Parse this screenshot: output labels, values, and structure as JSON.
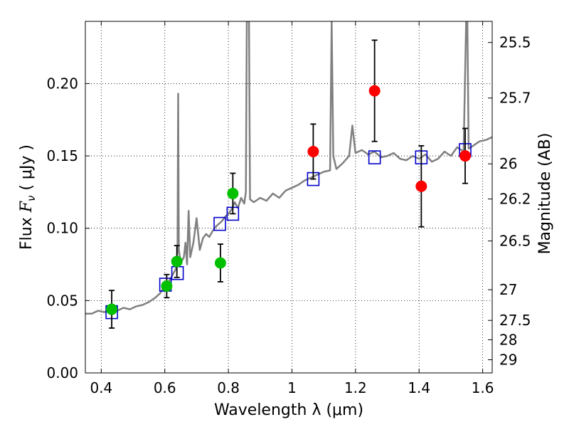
{
  "chart_data": {
    "type": "scatter",
    "xlabel": "Wavelength  λ (μm)",
    "ylabel_parts": [
      "Flux  ",
      "F",
      "ν",
      " (  μJy )"
    ],
    "y2label": "Magnitude (AB)",
    "xlim": [
      0.35,
      1.63
    ],
    "ylim": [
      0.0,
      0.243
    ],
    "x_ticks": [
      0.4,
      0.6,
      0.8,
      1.0,
      1.2,
      1.4,
      1.6
    ],
    "x_tick_labels": [
      "0.4",
      "0.6",
      "0.8",
      "1",
      "1.2",
      "1.4",
      "1.6"
    ],
    "y_ticks": [
      0.0,
      0.05,
      0.1,
      0.15,
      0.2
    ],
    "y_tick_labels": [
      "0.00",
      "0.05",
      "0.10",
      "0.15",
      "0.20"
    ],
    "y2_ticks": [
      {
        "label": "25.5",
        "flux": 0.2284
      },
      {
        "label": "25.7",
        "flux": 0.19
      },
      {
        "label": "26",
        "flux": 0.1445
      },
      {
        "label": "26.2",
        "flux": 0.1202
      },
      {
        "label": "26.5",
        "flux": 0.0912
      },
      {
        "label": "27",
        "flux": 0.0575
      },
      {
        "label": "27.5",
        "flux": 0.0363
      },
      {
        "label": "28",
        "flux": 0.0229
      },
      {
        "label": "29",
        "flux": 0.0091
      }
    ],
    "grid": true,
    "colors": {
      "spectrum": "#808080",
      "green": "#00c000",
      "red": "#ff0000",
      "model_box": "#0000cc",
      "errorbar": "#000000"
    },
    "spectrum": [
      [
        0.35,
        0.041
      ],
      [
        0.37,
        0.041
      ],
      [
        0.39,
        0.043
      ],
      [
        0.41,
        0.042
      ],
      [
        0.43,
        0.044
      ],
      [
        0.45,
        0.043
      ],
      [
        0.47,
        0.045
      ],
      [
        0.49,
        0.044
      ],
      [
        0.51,
        0.046
      ],
      [
        0.53,
        0.047
      ],
      [
        0.55,
        0.049
      ],
      [
        0.57,
        0.052
      ],
      [
        0.585,
        0.055
      ],
      [
        0.6,
        0.06
      ],
      [
        0.615,
        0.064
      ],
      [
        0.625,
        0.068
      ],
      [
        0.635,
        0.072
      ],
      [
        0.64,
        0.085
      ],
      [
        0.642,
        0.193
      ],
      [
        0.644,
        0.085
      ],
      [
        0.65,
        0.076
      ],
      [
        0.66,
        0.08
      ],
      [
        0.665,
        0.09
      ],
      [
        0.67,
        0.075
      ],
      [
        0.675,
        0.112
      ],
      [
        0.68,
        0.08
      ],
      [
        0.69,
        0.09
      ],
      [
        0.7,
        0.107
      ],
      [
        0.71,
        0.085
      ],
      [
        0.72,
        0.093
      ],
      [
        0.73,
        0.096
      ],
      [
        0.74,
        0.094
      ],
      [
        0.75,
        0.098
      ],
      [
        0.76,
        0.101
      ],
      [
        0.77,
        0.103
      ],
      [
        0.78,
        0.105
      ],
      [
        0.79,
        0.108
      ],
      [
        0.8,
        0.11
      ],
      [
        0.81,
        0.113
      ],
      [
        0.82,
        0.118
      ],
      [
        0.83,
        0.114
      ],
      [
        0.84,
        0.121
      ],
      [
        0.85,
        0.117
      ],
      [
        0.855,
        0.125
      ],
      [
        0.858,
        0.243
      ],
      [
        0.865,
        0.243
      ],
      [
        0.868,
        0.12
      ],
      [
        0.88,
        0.118
      ],
      [
        0.9,
        0.121
      ],
      [
        0.92,
        0.119
      ],
      [
        0.94,
        0.124
      ],
      [
        0.96,
        0.121
      ],
      [
        0.98,
        0.126
      ],
      [
        1.0,
        0.128
      ],
      [
        1.02,
        0.13
      ],
      [
        1.04,
        0.133
      ],
      [
        1.06,
        0.135
      ],
      [
        1.08,
        0.137
      ],
      [
        1.1,
        0.139
      ],
      [
        1.12,
        0.14
      ],
      [
        1.125,
        0.243
      ],
      [
        1.13,
        0.15
      ],
      [
        1.14,
        0.141
      ],
      [
        1.16,
        0.145
      ],
      [
        1.18,
        0.15
      ],
      [
        1.19,
        0.171
      ],
      [
        1.2,
        0.152
      ],
      [
        1.22,
        0.154
      ],
      [
        1.24,
        0.151
      ],
      [
        1.26,
        0.153
      ],
      [
        1.28,
        0.149
      ],
      [
        1.3,
        0.15
      ],
      [
        1.32,
        0.152
      ],
      [
        1.34,
        0.148
      ],
      [
        1.36,
        0.147
      ],
      [
        1.38,
        0.15
      ],
      [
        1.4,
        0.148
      ],
      [
        1.42,
        0.151
      ],
      [
        1.44,
        0.146
      ],
      [
        1.46,
        0.148
      ],
      [
        1.48,
        0.153
      ],
      [
        1.5,
        0.15
      ],
      [
        1.52,
        0.156
      ],
      [
        1.54,
        0.153
      ],
      [
        1.548,
        0.243
      ],
      [
        1.552,
        0.243
      ],
      [
        1.556,
        0.155
      ],
      [
        1.57,
        0.157
      ],
      [
        1.59,
        0.16
      ],
      [
        1.61,
        0.161
      ],
      [
        1.63,
        0.163
      ]
    ],
    "series": [
      {
        "name": "green",
        "points": [
          {
            "x": 0.433,
            "y": 0.044,
            "err": 0.013
          },
          {
            "x": 0.606,
            "y": 0.06,
            "err": 0.008
          },
          {
            "x": 0.638,
            "y": 0.077,
            "err": 0.011
          },
          {
            "x": 0.775,
            "y": 0.076,
            "err": 0.013
          },
          {
            "x": 0.814,
            "y": 0.124,
            "err": 0.014
          }
        ]
      },
      {
        "name": "red",
        "points": [
          {
            "x": 1.067,
            "y": 0.153,
            "err": 0.019
          },
          {
            "x": 1.26,
            "y": 0.195,
            "err": 0.035
          },
          {
            "x": 1.407,
            "y": 0.129,
            "err": 0.028
          },
          {
            "x": 1.545,
            "y": 0.15,
            "err": 0.019
          }
        ]
      }
    ],
    "model_boxes": [
      {
        "x": 0.433,
        "y": 0.042
      },
      {
        "x": 0.602,
        "y": 0.061
      },
      {
        "x": 0.64,
        "y": 0.069
      },
      {
        "x": 0.773,
        "y": 0.103
      },
      {
        "x": 0.814,
        "y": 0.11
      },
      {
        "x": 1.067,
        "y": 0.134
      },
      {
        "x": 1.26,
        "y": 0.149
      },
      {
        "x": 1.407,
        "y": 0.149
      },
      {
        "x": 1.545,
        "y": 0.154
      }
    ]
  }
}
